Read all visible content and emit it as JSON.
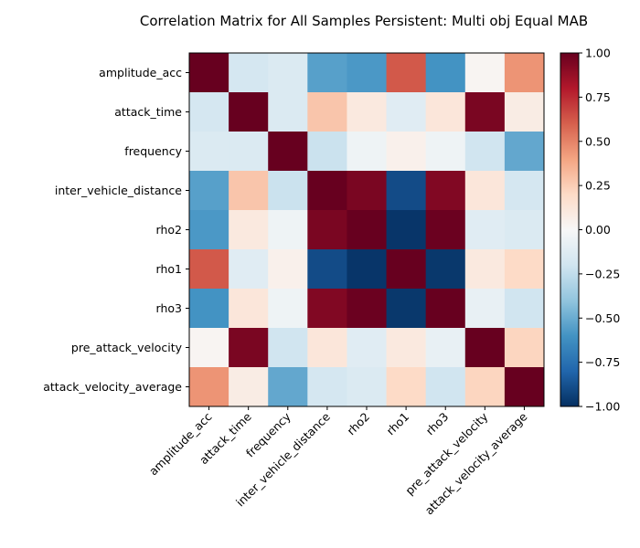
{
  "chart_data": {
    "type": "heatmap",
    "title": "Correlation Matrix for All Samples Persistent: Multi obj Equal MAB",
    "row_labels": [
      "amplitude_acc",
      "attack_time",
      "frequency",
      "inter_vehicle_distance",
      "rho2",
      "rho1",
      "rho3",
      "pre_attack_velocity",
      "attack_velocity_average"
    ],
    "col_labels": [
      "amplitude_acc",
      "attack_time",
      "frequency",
      "inter_vehicle_distance",
      "rho2",
      "rho1",
      "rho3",
      "pre_attack_velocity",
      "attack_velocity_average"
    ],
    "values": [
      [
        1.0,
        -0.18,
        -0.15,
        -0.55,
        -0.58,
        0.62,
        -0.6,
        0.02,
        0.45
      ],
      [
        -0.18,
        1.0,
        -0.15,
        0.28,
        0.1,
        -0.12,
        0.12,
        0.95,
        0.08
      ],
      [
        -0.15,
        -0.15,
        1.0,
        -0.22,
        -0.05,
        0.05,
        -0.05,
        -0.2,
        -0.52
      ],
      [
        -0.55,
        0.28,
        -0.22,
        1.0,
        0.95,
        -0.9,
        0.93,
        0.12,
        -0.18
      ],
      [
        -0.58,
        0.1,
        -0.05,
        0.95,
        1.0,
        -0.98,
        0.99,
        -0.12,
        -0.15
      ],
      [
        0.62,
        -0.12,
        0.05,
        -0.9,
        -0.98,
        1.0,
        -0.97,
        0.1,
        0.2
      ],
      [
        -0.6,
        0.12,
        -0.05,
        0.93,
        0.99,
        -0.97,
        1.0,
        -0.08,
        -0.2
      ],
      [
        0.02,
        0.95,
        -0.2,
        0.12,
        -0.12,
        0.1,
        -0.08,
        1.0,
        0.22
      ],
      [
        0.45,
        0.08,
        -0.52,
        -0.18,
        -0.15,
        0.2,
        -0.2,
        0.22,
        1.0
      ]
    ],
    "vmin": -1.0,
    "vmax": 1.0,
    "colormap": "RdBu_r",
    "colorbar_ticks": [
      "1.00",
      "0.75",
      "0.50",
      "0.25",
      "0.00",
      "−0.25",
      "−0.50",
      "−0.75",
      "−1.00"
    ],
    "colorbar_values": [
      1.0,
      0.75,
      0.5,
      0.25,
      0.0,
      -0.25,
      -0.5,
      -0.75,
      -1.0
    ]
  }
}
